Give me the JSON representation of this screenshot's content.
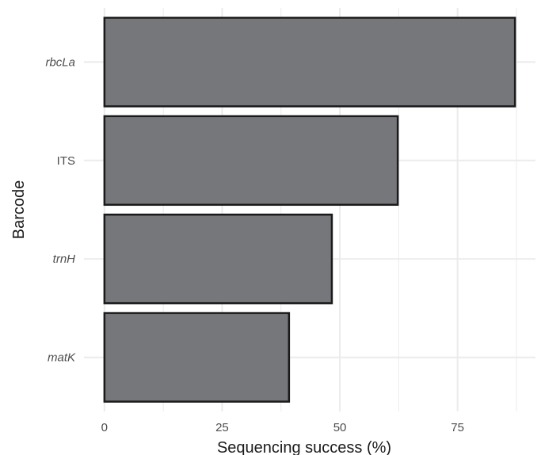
{
  "chart_data": {
    "type": "bar",
    "orientation": "horizontal",
    "categories": [
      "rbcLa",
      "ITS",
      "trnH",
      "matK"
    ],
    "category_italic": [
      true,
      false,
      true,
      true
    ],
    "values": [
      87.2,
      62.3,
      48.3,
      39.2
    ],
    "xlabel": "Sequencing success (%)",
    "ylabel": "Barcode",
    "xticks": [
      0,
      25,
      50,
      75
    ],
    "xtick_labels": [
      "0",
      "25",
      "50",
      "75"
    ],
    "xlim": [
      -4.35,
      91.55
    ],
    "grid": true,
    "legend": "none",
    "colors": {
      "bar_fill": "#76777a",
      "bar_stroke": "#1a1a1a",
      "grid": "#ebebeb",
      "text": "#4d4d4d"
    }
  }
}
